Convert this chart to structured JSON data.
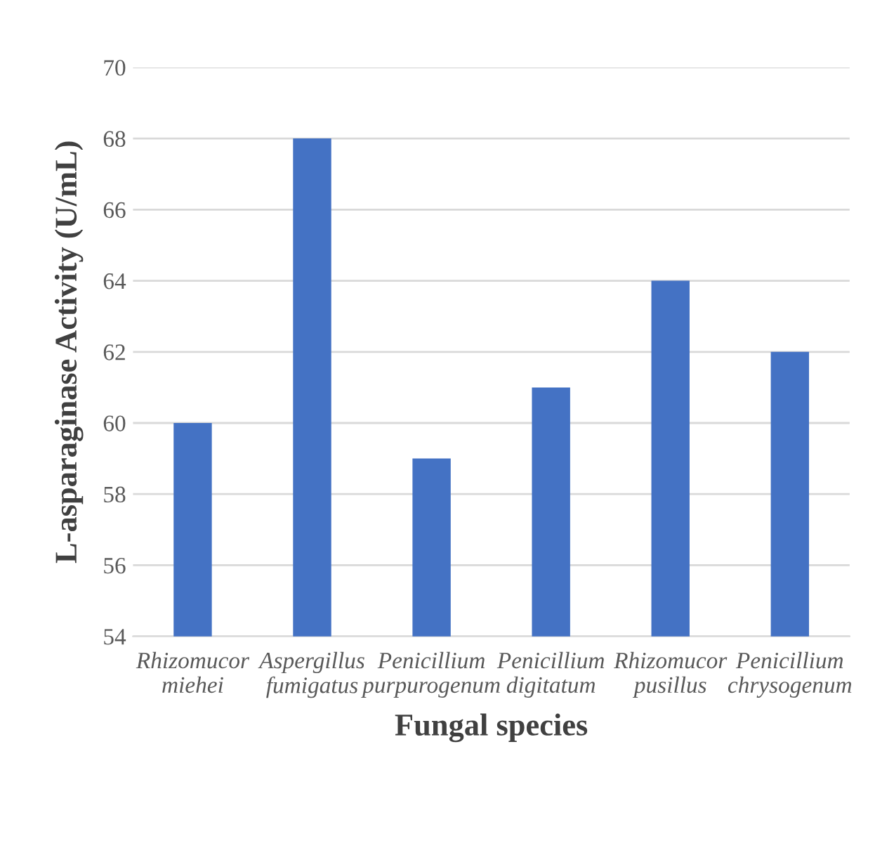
{
  "chart_data": {
    "type": "bar",
    "xlabel": "Fungal species",
    "ylabel": "L-asparaginase Activity (U/mL)",
    "categories": [
      "Rhizomucor\nmiehei",
      "Aspergillus\nfumigatus",
      "Penicillium\npurpurogenum",
      "Penicillium\ndigitatum",
      "Rhizomucor\npusillus",
      "Penicillium\nchrysogenum"
    ],
    "values": [
      60,
      68,
      59,
      61,
      64,
      62
    ],
    "color": "#4472c4",
    "ylim": [
      54,
      70
    ],
    "yticks": [
      54,
      56,
      58,
      60,
      62,
      64,
      66,
      68,
      70
    ],
    "grid": "y"
  }
}
